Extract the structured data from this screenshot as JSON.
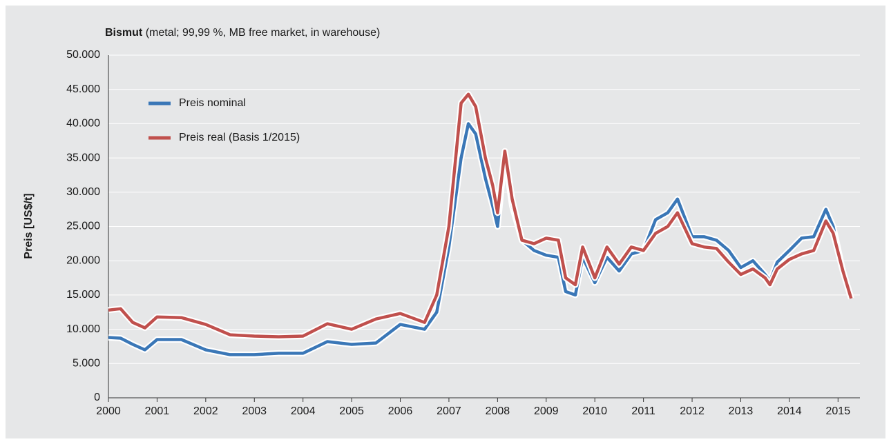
{
  "chart_data": {
    "type": "line",
    "title": "Bismut",
    "subtitle": "(metal; 99,99 %, MB free market, in warehouse)",
    "y_label": "Preis [US$/t]",
    "x": [
      2000,
      2000.25,
      2000.5,
      2000.75,
      2001,
      2001.5,
      2002,
      2002.5,
      2003,
      2003.5,
      2004,
      2004.5,
      2005,
      2005.5,
      2006,
      2006.5,
      2006.75,
      2007,
      2007.25,
      2007.4,
      2007.55,
      2007.75,
      2007.9,
      2008,
      2008.15,
      2008.3,
      2008.5,
      2008.75,
      2009,
      2009.25,
      2009.4,
      2009.6,
      2009.75,
      2010,
      2010.25,
      2010.5,
      2010.75,
      2011,
      2011.25,
      2011.5,
      2011.7,
      2012,
      2012.25,
      2012.5,
      2012.75,
      2013,
      2013.25,
      2013.5,
      2013.6,
      2013.75,
      2014,
      2014.25,
      2014.5,
      2014.75,
      2014.9,
      2015.1,
      2015.27
    ],
    "series": [
      {
        "name": "Preis nominal",
        "color": "#3a77b7",
        "values": [
          8800,
          8700,
          7800,
          7000,
          8500,
          8500,
          7000,
          6300,
          6300,
          6500,
          6500,
          8200,
          7800,
          8000,
          10700,
          10000,
          12500,
          22000,
          35000,
          40000,
          38500,
          32000,
          28000,
          25000,
          35500,
          28000,
          23000,
          21500,
          20800,
          20500,
          15500,
          15000,
          20500,
          16800,
          20500,
          18500,
          21000,
          21500,
          26000,
          27000,
          29000,
          23500,
          23500,
          23000,
          21500,
          19000,
          20000,
          18000,
          17000,
          19800,
          21500,
          23300,
          23500,
          27500,
          25000,
          18500,
          14500
        ]
      },
      {
        "name": "Preis real (Basis 1/2015)",
        "color": "#c0504d",
        "values": [
          12800,
          13000,
          11000,
          10200,
          11800,
          11700,
          10700,
          9200,
          9000,
          8900,
          9000,
          10800,
          10000,
          11500,
          12300,
          11000,
          15000,
          25000,
          43000,
          44300,
          42500,
          35000,
          31000,
          27000,
          36000,
          29000,
          23000,
          22500,
          23300,
          23000,
          17500,
          16500,
          22000,
          17500,
          22000,
          19500,
          22000,
          21500,
          24000,
          25000,
          27000,
          22500,
          22000,
          21800,
          19800,
          18000,
          18800,
          17500,
          16500,
          18800,
          20200,
          21000,
          21500,
          25800,
          24000,
          18500,
          14500
        ]
      }
    ],
    "xlim": [
      2000,
      2015.45
    ],
    "xticks": [
      2000,
      2001,
      2002,
      2003,
      2004,
      2005,
      2006,
      2007,
      2008,
      2009,
      2010,
      2011,
      2012,
      2013,
      2014,
      2015
    ],
    "ylim": [
      0,
      50000
    ],
    "yticks": [
      0,
      {
        "value": 5000,
        "label": "5.000"
      },
      {
        "value": 10000,
        "label": "10.000"
      },
      {
        "value": 15000,
        "label": "15.000"
      },
      {
        "value": 20000,
        "label": "20.000"
      },
      {
        "value": 25000,
        "label": "25.000"
      },
      {
        "value": 30000,
        "label": "30.000"
      },
      {
        "value": 35000,
        "label": "35.000"
      },
      {
        "value": 40000,
        "label": "40.000"
      },
      {
        "value": 45000,
        "label": "45.000"
      },
      {
        "value": 50000,
        "label": "50.000"
      }
    ],
    "grid": true,
    "legend": "upper left"
  }
}
